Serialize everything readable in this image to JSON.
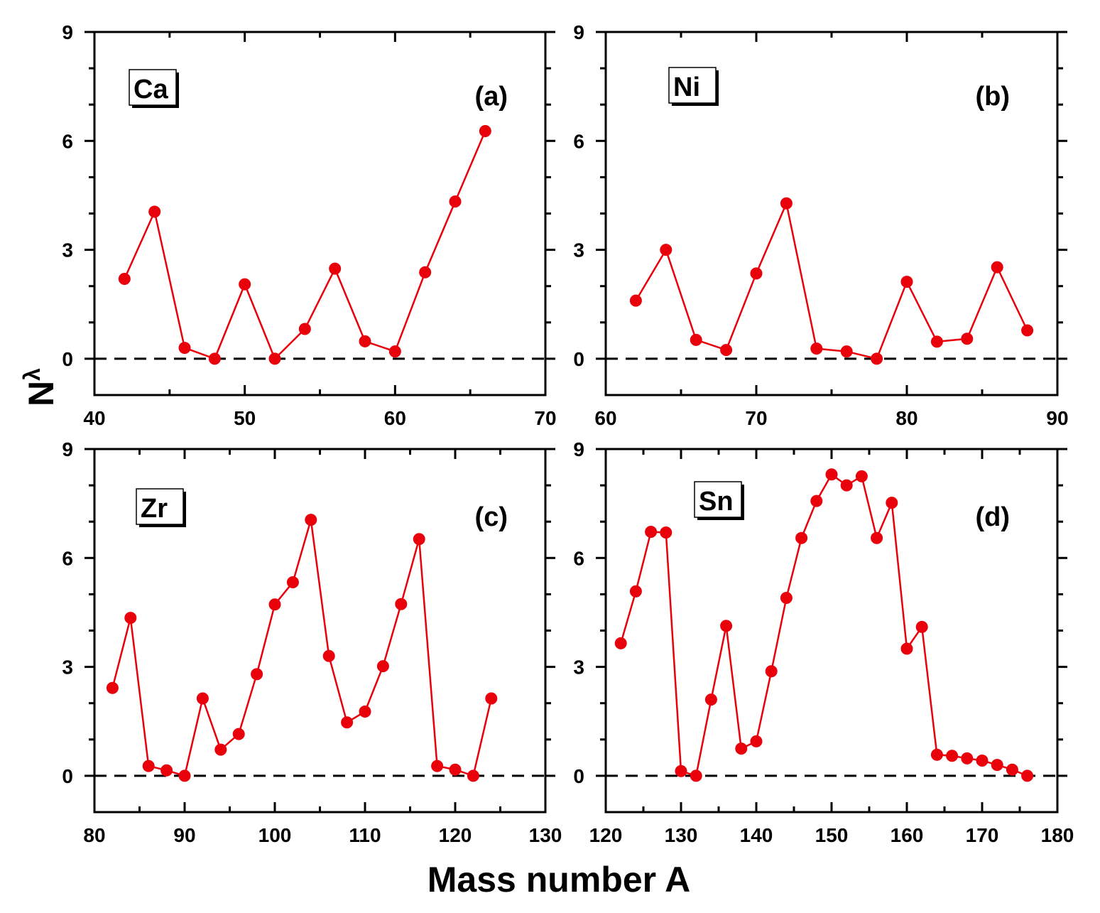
{
  "figure": {
    "ylabel_main": "N",
    "ylabel_sub": "λ",
    "xlabel": "Mass number A"
  },
  "colors": {
    "series": "#e8000b",
    "axes": "#000000",
    "reference": "#000000"
  },
  "chart_data": [
    {
      "type": "line",
      "panel": "(a)",
      "element": "Ca",
      "xlim": [
        40,
        70
      ],
      "ylim": [
        -1,
        9
      ],
      "xticks": [
        40,
        50,
        60,
        70
      ],
      "yticks": [
        0,
        3,
        6,
        9
      ],
      "reference_line": 0,
      "series": [
        {
          "x": [
            42,
            44,
            46,
            48,
            50,
            52,
            54,
            56,
            58,
            60,
            62,
            64,
            66
          ],
          "y": [
            2.2,
            4.05,
            0.3,
            0.0,
            2.05,
            0.0,
            0.82,
            2.48,
            0.48,
            0.2,
            2.38,
            4.33,
            6.27
          ]
        }
      ]
    },
    {
      "type": "line",
      "panel": "(b)",
      "element": "Ni",
      "xlim": [
        60,
        90
      ],
      "ylim": [
        -1,
        9
      ],
      "xticks": [
        60,
        70,
        80,
        90
      ],
      "yticks": [
        0,
        3,
        6,
        9
      ],
      "reference_line": 0,
      "series": [
        {
          "x": [
            62,
            64,
            66,
            68,
            70,
            72,
            74,
            76,
            78,
            80,
            82,
            84,
            86,
            88
          ],
          "y": [
            1.6,
            3.0,
            0.52,
            0.24,
            2.35,
            4.28,
            0.28,
            0.2,
            0.0,
            2.12,
            0.47,
            0.55,
            2.52,
            0.78
          ]
        }
      ]
    },
    {
      "type": "line",
      "panel": "(c)",
      "element": "Zr",
      "xlim": [
        80,
        130
      ],
      "ylim": [
        -1,
        9
      ],
      "xticks": [
        80,
        90,
        100,
        110,
        120,
        130
      ],
      "yticks": [
        0,
        3,
        6,
        9
      ],
      "reference_line": 0,
      "series": [
        {
          "x": [
            82,
            84,
            86,
            88,
            90,
            92,
            94,
            96,
            98,
            100,
            102,
            104,
            106,
            108,
            110,
            112,
            114,
            116,
            118,
            120,
            122,
            124
          ],
          "y": [
            2.42,
            4.35,
            0.27,
            0.15,
            0.0,
            2.13,
            0.72,
            1.15,
            2.8,
            4.72,
            5.33,
            7.05,
            3.3,
            1.47,
            1.77,
            3.02,
            4.73,
            6.52,
            0.27,
            0.17,
            0.0,
            2.13
          ]
        }
      ]
    },
    {
      "type": "line",
      "panel": "(d)",
      "element": "Sn",
      "xlim": [
        120,
        180
      ],
      "ylim": [
        -1,
        9
      ],
      "xticks": [
        120,
        130,
        140,
        150,
        160,
        170,
        180
      ],
      "yticks": [
        0,
        3,
        6,
        9
      ],
      "reference_line": 0,
      "series": [
        {
          "x": [
            122,
            124,
            126,
            128,
            130,
            132,
            134,
            136,
            138,
            140,
            142,
            144,
            146,
            148,
            150,
            152,
            154,
            156,
            158,
            160,
            162,
            164,
            166,
            168,
            170,
            172,
            174,
            176
          ],
          "y": [
            3.65,
            5.08,
            6.72,
            6.7,
            0.13,
            0.0,
            2.1,
            4.13,
            0.75,
            0.95,
            2.88,
            4.9,
            6.55,
            7.57,
            8.3,
            8.0,
            8.25,
            6.55,
            7.52,
            3.5,
            4.1,
            0.58,
            0.55,
            0.48,
            0.42,
            0.3,
            0.17,
            0.0
          ]
        }
      ]
    }
  ]
}
